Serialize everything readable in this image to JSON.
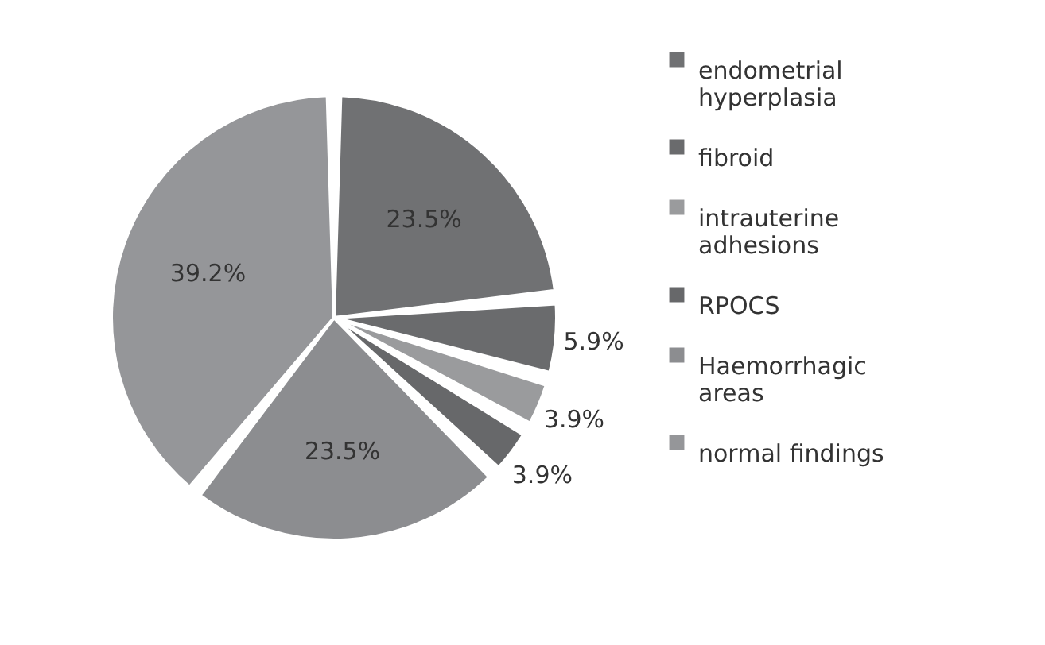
{
  "chart_data": {
    "type": "pie",
    "categories": [
      "endometrial hyperplasia",
      "fibroid",
      "intrauterine adhesions",
      "RPOCS",
      "Haemorrhagic areas",
      "normal findings"
    ],
    "values": [
      23.5,
      5.9,
      3.9,
      3.9,
      23.5,
      39.2
    ],
    "value_labels": [
      "23.5%",
      "5.9%",
      "3.9%",
      "3.9%",
      "23.5%",
      "39.2%"
    ],
    "colors": [
      "#707173",
      "#6a6b6d",
      "#9a9b9d",
      "#67686a",
      "#8c8d90",
      "#959699"
    ],
    "legend": "right"
  }
}
